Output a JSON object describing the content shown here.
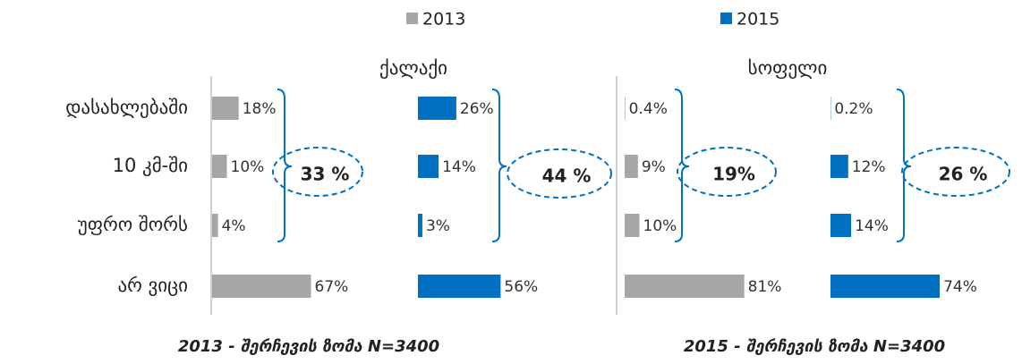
{
  "chart_data": {
    "type": "bar",
    "orientation": "horizontal",
    "legend": [
      {
        "name": "2013",
        "color": "#a6a6a6"
      },
      {
        "name": "2015",
        "color": "#0070c0"
      }
    ],
    "categories": [
      "დასახლებაში",
      "10 კმ-ში",
      "უფრო შორს",
      "არ ვიცი"
    ],
    "groups": [
      {
        "title": "ქალაქი",
        "series": [
          {
            "values": [
              18,
              10,
              4,
              67
            ],
            "value_labels": [
              "18%",
              "10%",
              "4%",
              "67%"
            ],
            "annotation": "33 %"
          },
          {
            "values": [
              26,
              14,
              3,
              56
            ],
            "value_labels": [
              "26%",
              "14%",
              "3%",
              "56%"
            ],
            "annotation": "44 %"
          }
        ]
      },
      {
        "title": "სოფელი",
        "series": [
          {
            "values": [
              0.4,
              9,
              10,
              81
            ],
            "value_labels": [
              "0.4%",
              "9%",
              "10%",
              "81%"
            ],
            "annotation": "19%"
          },
          {
            "values": [
              0.2,
              12,
              14,
              74
            ],
            "value_labels": [
              "0.2%",
              "12%",
              "14%",
              "74%"
            ],
            "annotation": "26 %"
          }
        ]
      }
    ],
    "notes": [
      "2013 - შერჩევის ზომა N=3400",
      "2015 - შერჩევის ზომა N=3400"
    ]
  }
}
